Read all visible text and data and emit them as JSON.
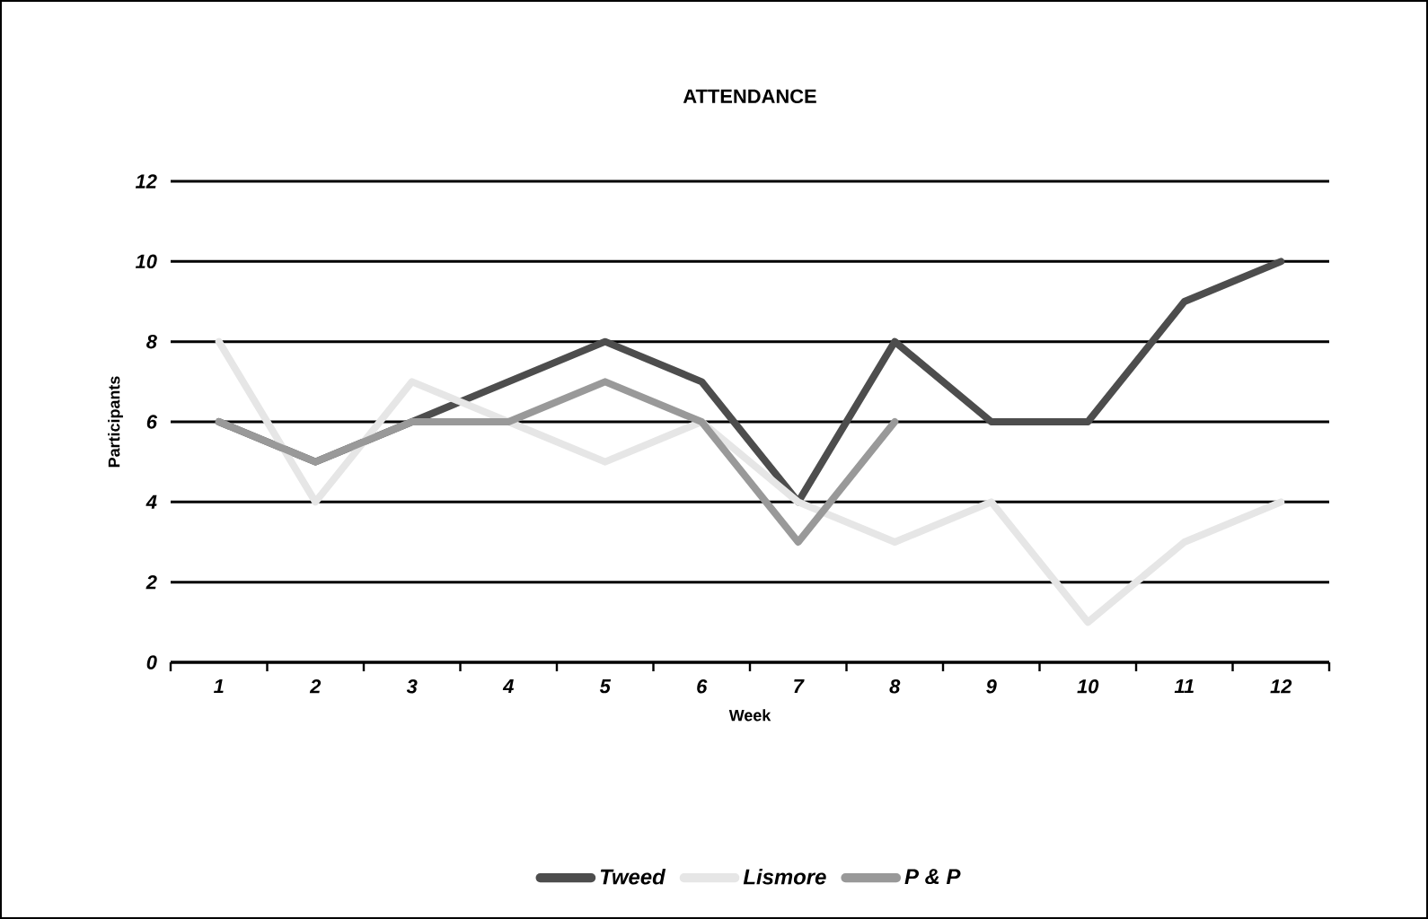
{
  "chart_data": {
    "type": "line",
    "title": "ATTENDANCE",
    "xlabel": "Week",
    "ylabel": "Participants",
    "categories": [
      "1",
      "2",
      "3",
      "4",
      "5",
      "6",
      "7",
      "8",
      "9",
      "10",
      "11",
      "12"
    ],
    "series": [
      {
        "name": "Tweed",
        "color": "#4d4d4d",
        "values": [
          6,
          5,
          6,
          7,
          8,
          7,
          4,
          8,
          6,
          6,
          9,
          10
        ]
      },
      {
        "name": "Lismore",
        "color": "#e6e6e6",
        "values": [
          8,
          4,
          7,
          6,
          5,
          6,
          4,
          3,
          4,
          1,
          3,
          4
        ]
      },
      {
        "name": "P & P",
        "color": "#999999",
        "values": [
          6,
          5,
          6,
          6,
          7,
          6,
          3,
          6,
          null,
          null,
          null,
          null
        ]
      }
    ],
    "ylim": [
      0,
      12
    ],
    "yticks": [
      0,
      2,
      4,
      6,
      8,
      10,
      12
    ],
    "grid": "y",
    "legend": "bottom",
    "marker": "none",
    "line_style": "solid"
  }
}
